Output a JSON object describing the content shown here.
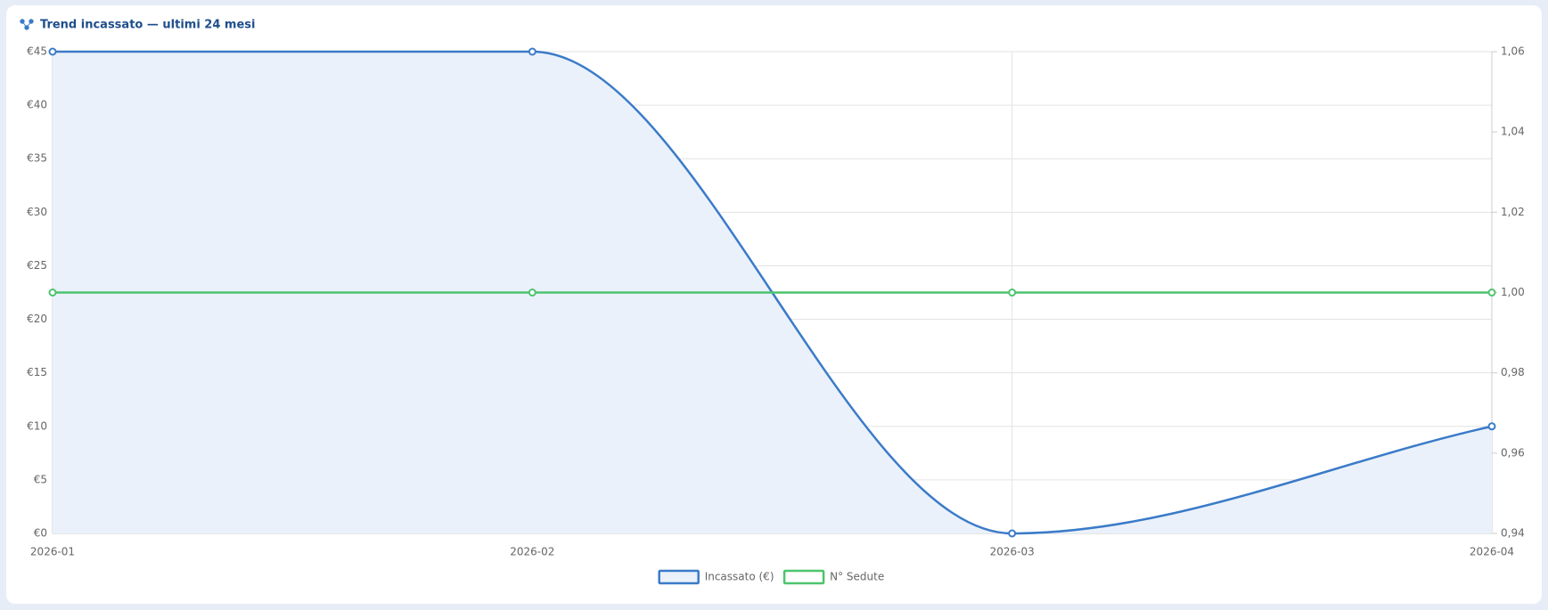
{
  "chart_data": {
    "type": "line",
    "title": "Trend incassato — ultimi 24 mesi",
    "categories": [
      "2026-01",
      "2026-02",
      "2026-03",
      "2026-04"
    ],
    "series": [
      {
        "name": "Incassato (€)",
        "color": "#3a7bc8",
        "fill": "#eaf1fa",
        "values": [
          45,
          45,
          0,
          10
        ]
      },
      {
        "name": "N° Sedute",
        "color": "#4cc46e",
        "axis": "y2",
        "values": [
          1,
          1,
          1,
          1
        ]
      }
    ],
    "ylim": [
      0,
      45
    ],
    "yticks": [
      {
        "value": 0,
        "label": "€0"
      },
      {
        "value": 5,
        "label": "€5"
      },
      {
        "value": 10,
        "label": "€10"
      },
      {
        "value": 15,
        "label": "€15"
      },
      {
        "value": 20,
        "label": "€20"
      },
      {
        "value": 25,
        "label": "€25"
      },
      {
        "value": 30,
        "label": "€30"
      },
      {
        "value": 35,
        "label": "€35"
      },
      {
        "value": 40,
        "label": "€40"
      },
      {
        "value": 45,
        "label": "€45"
      }
    ],
    "y2lim": [
      0.94,
      1.06
    ],
    "y2ticks": [
      {
        "value": 0.94,
        "label": "0,94"
      },
      {
        "value": 0.96,
        "label": "0,96"
      },
      {
        "value": 0.98,
        "label": "0,98"
      },
      {
        "value": 1.0,
        "label": "1,00"
      },
      {
        "value": 1.02,
        "label": "1,02"
      },
      {
        "value": 1.04,
        "label": "1,04"
      },
      {
        "value": 1.06,
        "label": "1,06"
      }
    ],
    "grid": true,
    "smooth": true,
    "legend": "bottom"
  }
}
